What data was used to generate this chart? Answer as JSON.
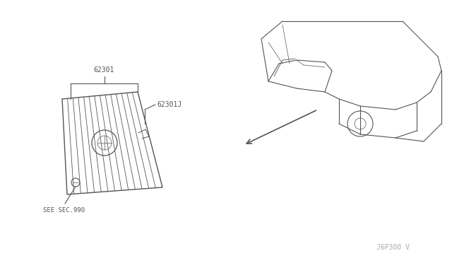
{
  "bg_color": "#ffffff",
  "line_color": "#555555",
  "text_color": "#555555",
  "fig_width": 6.4,
  "fig_height": 3.72,
  "dpi": 100,
  "watermark": "J6P300 V",
  "label_62301": "62301",
  "label_62301J": "62301J",
  "label_see_sec": "SEE SEC.990"
}
